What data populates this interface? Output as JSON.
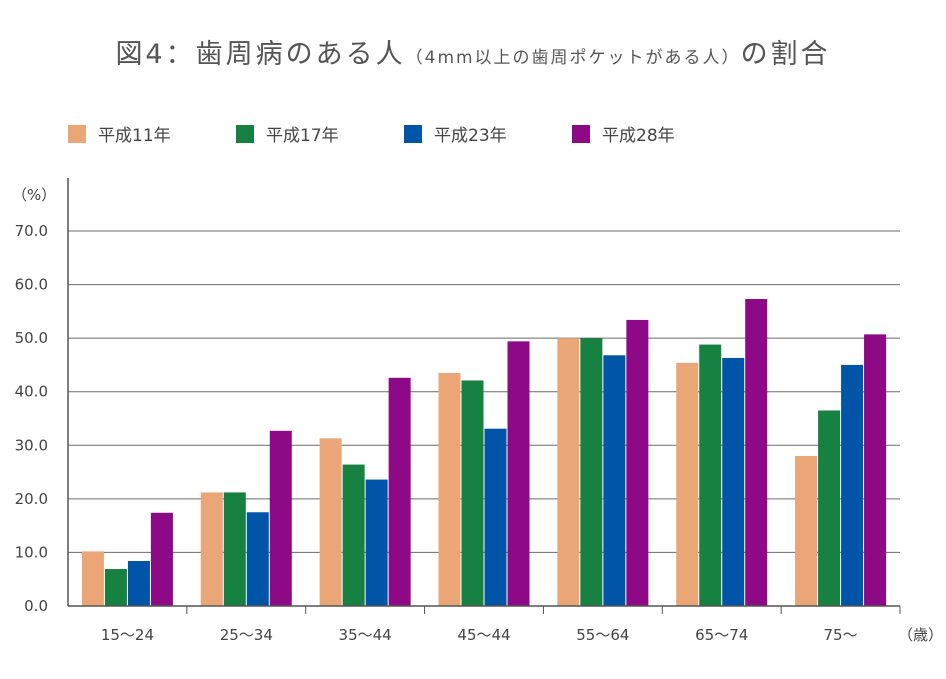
{
  "title": {
    "main": "図4：歯周病のある人",
    "paren": "（4mm以上の歯周ポケットがある人）",
    "suffix": "の割合"
  },
  "legend": [
    {
      "label": "平成11年",
      "color": "#EBA677"
    },
    {
      "label": "平成17年",
      "color": "#168140"
    },
    {
      "label": "平成23年",
      "color": "#0055A9"
    },
    {
      "label": "平成28年",
      "color": "#8E0985"
    }
  ],
  "chart_data": {
    "type": "bar",
    "ylabel": "（%）",
    "xlabel": "（歳）",
    "ylim": [
      0,
      70
    ],
    "yticks": [
      "0.0",
      "10.0",
      "20.0",
      "30.0",
      "40.0",
      "50.0",
      "60.0",
      "70.0"
    ],
    "grid": true,
    "legend_position": "top-left",
    "categories": [
      "15〜24",
      "25〜34",
      "35〜44",
      "45〜44",
      "55〜64",
      "65〜74",
      "75〜"
    ],
    "series": [
      {
        "name": "平成11年",
        "color": "#EBA677",
        "values": [
          10.2,
          21.2,
          31.3,
          43.5,
          50.0,
          45.4,
          28.0
        ]
      },
      {
        "name": "平成17年",
        "color": "#168140",
        "values": [
          6.9,
          21.2,
          26.4,
          42.1,
          50.0,
          48.8,
          36.5
        ]
      },
      {
        "name": "平成23年",
        "color": "#0055A9",
        "values": [
          8.4,
          17.5,
          23.6,
          33.1,
          46.8,
          46.3,
          45.0
        ]
      },
      {
        "name": "平成28年",
        "color": "#8E0985",
        "values": [
          17.4,
          32.7,
          42.6,
          49.4,
          53.4,
          57.3,
          50.7
        ]
      }
    ]
  }
}
